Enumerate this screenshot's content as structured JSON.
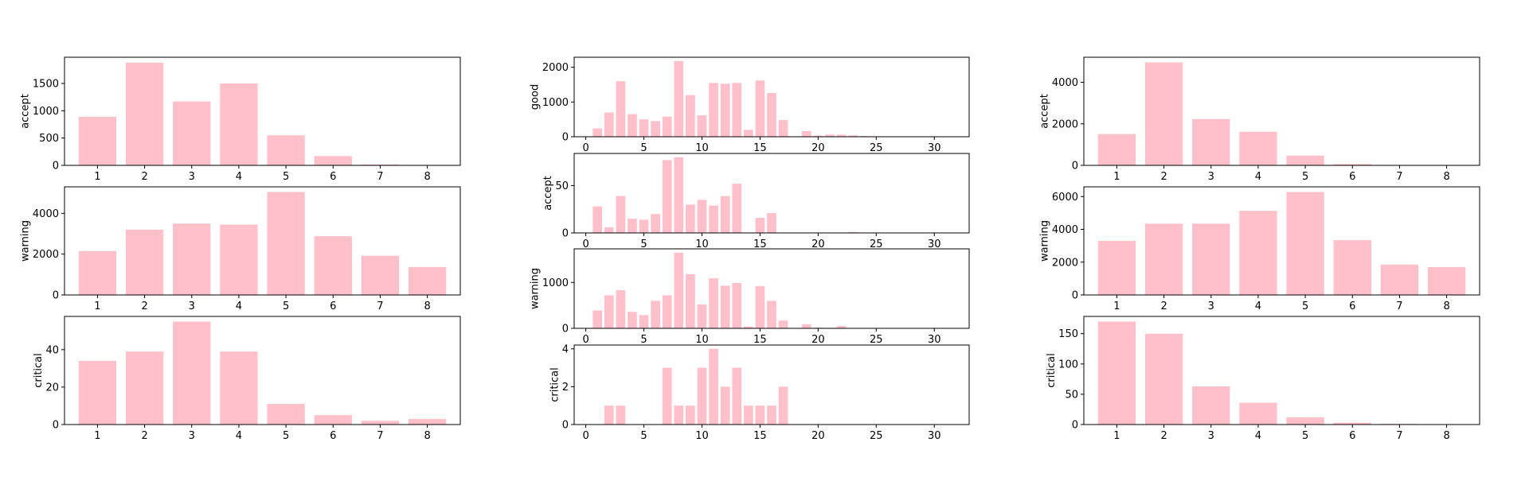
{
  "chart_data": [
    {
      "type": "bar",
      "ylabel": "accept",
      "categories": [
        1,
        2,
        3,
        4,
        5,
        6,
        7,
        8
      ],
      "values": [
        890,
        1880,
        1170,
        1500,
        550,
        170,
        15,
        5
      ],
      "xlim": [
        0.3,
        8.7
      ],
      "ylim": [
        0,
        1980
      ],
      "xticks": [
        1,
        2,
        3,
        4,
        5,
        6,
        7,
        8
      ],
      "yticks": [
        0,
        500,
        1000,
        1500
      ],
      "color": "#ffc0cb",
      "grid": false
    },
    {
      "type": "bar",
      "ylabel": "warning",
      "categories": [
        1,
        2,
        3,
        4,
        5,
        6,
        7,
        8
      ],
      "values": [
        2150,
        3200,
        3500,
        3450,
        5050,
        2880,
        1920,
        1370
      ],
      "xlim": [
        0.3,
        8.7
      ],
      "ylim": [
        0,
        5300
      ],
      "xticks": [
        1,
        2,
        3,
        4,
        5,
        6,
        7,
        8
      ],
      "yticks": [
        0,
        2000,
        4000
      ],
      "color": "#ffc0cb",
      "grid": false
    },
    {
      "type": "bar",
      "ylabel": "critical",
      "categories": [
        1,
        2,
        3,
        4,
        5,
        6,
        7,
        8
      ],
      "values": [
        34,
        39,
        55,
        39,
        11,
        5,
        2,
        3
      ],
      "xlim": [
        0.3,
        8.7
      ],
      "ylim": [
        0,
        57.75
      ],
      "xticks": [
        1,
        2,
        3,
        4,
        5,
        6,
        7,
        8
      ],
      "yticks": [
        0,
        20,
        40
      ],
      "color": "#ffc0cb",
      "grid": false
    },
    {
      "type": "bar",
      "ylabel": "good",
      "categories": [
        1,
        2,
        3,
        4,
        5,
        6,
        7,
        8,
        9,
        10,
        11,
        12,
        13,
        14,
        15,
        16,
        17,
        18,
        19,
        20,
        21,
        22,
        23,
        24
      ],
      "values": [
        240,
        700,
        1600,
        650,
        500,
        450,
        580,
        2180,
        1200,
        620,
        1550,
        1530,
        1550,
        200,
        1620,
        1260,
        480,
        0,
        160,
        30,
        60,
        60,
        40,
        20
      ],
      "xlim": [
        -1.0,
        33.0
      ],
      "ylim": [
        0,
        2290
      ],
      "xticks": [
        0,
        5,
        10,
        15,
        20,
        25,
        30
      ],
      "yticks": [
        0,
        1000,
        2000
      ],
      "color": "#ffc0cb",
      "grid": false
    },
    {
      "type": "bar",
      "ylabel": "accept",
      "categories": [
        1,
        2,
        3,
        4,
        5,
        6,
        7,
        8,
        9,
        10,
        11,
        12,
        13,
        14,
        15,
        16,
        17,
        18,
        19,
        20,
        21,
        22,
        23,
        24
      ],
      "values": [
        28,
        6,
        39,
        15,
        14,
        20,
        77,
        80,
        30,
        35,
        29,
        39,
        52,
        0,
        16,
        21,
        0,
        0,
        0,
        0,
        0,
        0,
        1,
        0
      ],
      "xlim": [
        -1.0,
        33.0
      ],
      "ylim": [
        0,
        84
      ],
      "xticks": [
        0,
        5,
        10,
        15,
        20,
        25,
        30
      ],
      "yticks": [
        0,
        50
      ],
      "color": "#ffc0cb",
      "grid": false
    },
    {
      "type": "bar",
      "ylabel": "warning",
      "categories": [
        1,
        2,
        3,
        4,
        5,
        6,
        7,
        8,
        9,
        10,
        11,
        12,
        13,
        14,
        15,
        16,
        17,
        18,
        19,
        20,
        21,
        22,
        23,
        24
      ],
      "values": [
        390,
        720,
        830,
        360,
        290,
        600,
        720,
        1650,
        1180,
        520,
        1090,
        930,
        990,
        40,
        920,
        600,
        170,
        0,
        90,
        15,
        10,
        50,
        0,
        0
      ],
      "xlim": [
        -1.0,
        33.0
      ],
      "ylim": [
        0,
        1733
      ],
      "xticks": [
        0,
        5,
        10,
        15,
        20,
        25,
        30
      ],
      "yticks": [
        0,
        1000
      ],
      "color": "#ffc0cb",
      "grid": false
    },
    {
      "type": "bar",
      "ylabel": "critical",
      "categories": [
        1,
        2,
        3,
        4,
        5,
        6,
        7,
        8,
        9,
        10,
        11,
        12,
        13,
        14,
        15,
        16,
        17
      ],
      "values": [
        0,
        1,
        1,
        0,
        0,
        0,
        3,
        1,
        1,
        3,
        4,
        2,
        3,
        1,
        1,
        1,
        2
      ],
      "xlim": [
        -1.0,
        33.0
      ],
      "ylim": [
        0,
        4.2
      ],
      "xticks": [
        0,
        5,
        10,
        15,
        20,
        25,
        30
      ],
      "yticks": [
        0,
        2,
        4
      ],
      "color": "#ffc0cb",
      "grid": false
    },
    {
      "type": "bar",
      "ylabel": "accept",
      "categories": [
        1,
        2,
        3,
        4,
        5,
        6,
        7,
        8
      ],
      "values": [
        1510,
        4960,
        2230,
        1620,
        470,
        60,
        15,
        5
      ],
      "xlim": [
        0.3,
        8.7
      ],
      "ylim": [
        0,
        5208
      ],
      "xticks": [
        1,
        2,
        3,
        4,
        5,
        6,
        7,
        8
      ],
      "yticks": [
        0,
        2000,
        4000
      ],
      "color": "#ffc0cb",
      "grid": false
    },
    {
      "type": "bar",
      "ylabel": "warning",
      "categories": [
        1,
        2,
        3,
        4,
        5,
        6,
        7,
        8
      ],
      "values": [
        3300,
        4350,
        4350,
        5130,
        6280,
        3340,
        1850,
        1700
      ],
      "xlim": [
        0.3,
        8.7
      ],
      "ylim": [
        0,
        6594
      ],
      "xticks": [
        1,
        2,
        3,
        4,
        5,
        6,
        7,
        8
      ],
      "yticks": [
        0,
        2000,
        4000,
        6000
      ],
      "color": "#ffc0cb",
      "grid": false
    },
    {
      "type": "bar",
      "ylabel": "critical",
      "categories": [
        1,
        2,
        3,
        4,
        5,
        6,
        7,
        8
      ],
      "values": [
        170,
        150,
        63,
        36,
        12,
        3,
        1,
        0
      ],
      "xlim": [
        0.3,
        8.7
      ],
      "ylim": [
        0,
        178.5
      ],
      "xticks": [
        1,
        2,
        3,
        4,
        5,
        6,
        7,
        8
      ],
      "yticks": [
        0,
        50,
        100,
        150
      ],
      "color": "#ffc0cb",
      "grid": false
    }
  ]
}
